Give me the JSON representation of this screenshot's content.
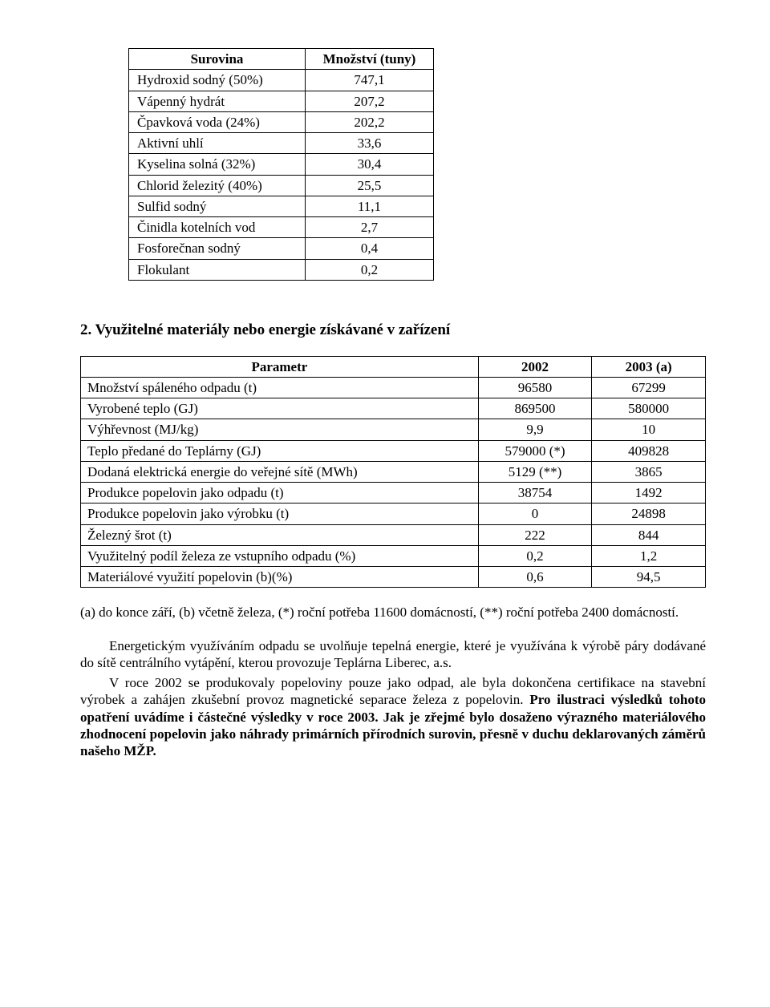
{
  "table1": {
    "headers": [
      "Surovina",
      "Množství (tuny)"
    ],
    "rows": [
      {
        "name": "Hydroxid sodný (50%)",
        "value": "747,1"
      },
      {
        "name": "Vápenný hydrát",
        "value": "207,2"
      },
      {
        "name": "Čpavková voda (24%)",
        "value": "202,2"
      },
      {
        "name": "Aktivní uhlí",
        "value": "33,6"
      },
      {
        "name": "Kyselina solná (32%)",
        "value": "30,4"
      },
      {
        "name": "Chlorid železitý (40%)",
        "value": "25,5"
      },
      {
        "name": "Sulfid sodný",
        "value": "11,1"
      },
      {
        "name": "Činidla kotelních vod",
        "value": "2,7"
      },
      {
        "name": "Fosforečnan sodný",
        "value": "0,4"
      },
      {
        "name": "Flokulant",
        "value": "0,2"
      }
    ]
  },
  "section2_title": "2. Využitelné materiály nebo energie získávané v zařízení",
  "table2": {
    "headers": [
      "Parametr",
      "2002",
      "2003 (a)"
    ],
    "rows": [
      {
        "param": "Množství spáleného odpadu  (t)",
        "v1": "96580",
        "v2": "67299"
      },
      {
        "param": "Vyrobené teplo (GJ)",
        "v1": "869500",
        "v2": "580000"
      },
      {
        "param": "Výhřevnost (MJ/kg)",
        "v1": "9,9",
        "v2": "10"
      },
      {
        "param": "Teplo předané do Teplárny (GJ)",
        "v1": "579000 (*)",
        "v2": "409828"
      },
      {
        "param": "Dodaná elektrická energie do veřejné sítě (MWh)",
        "v1": "5129 (**)",
        "v2": "3865"
      },
      {
        "param": "Produkce popelovin jako odpadu (t)",
        "v1": "38754",
        "v2": "1492"
      },
      {
        "param": "Produkce popelovin jako výrobku (t)",
        "v1": "0",
        "v2": "24898"
      },
      {
        "param": "Železný šrot (t)",
        "v1": "222",
        "v2": "844"
      },
      {
        "param": "Využitelný podíl železa ze vstupního odpadu (%)",
        "v1": "0,2",
        "v2": "1,2"
      },
      {
        "param": "Materiálové využití popelovin (b)(%)",
        "v1": "0,6",
        "v2": "94,5"
      }
    ]
  },
  "footnote": "(a) do konce září, (b) včetně železa, (*) roční potřeba 11600 domácností, (**) roční potřeba 2400 domácností.",
  "para1": "Energetickým využíváním odpadu se uvolňuje tepelná energie, které je využívána k výrobě páry dodávané do sítě centrálního vytápění, kterou provozuje Teplárna Liberec, a.s.",
  "para2": "V roce 2002 se produkovaly popeloviny pouze jako odpad, ale byla dokončena certifikace na stavební výrobek a zahájen zkušební provoz magnetické separace železa z popelovin. ",
  "para2_bold": "Pro ilustraci výsledků tohoto opatření uvádíme i částečné výsledky  v roce 2003. Jak je zřejmé bylo dosaženo výrazného materiálového zhodnocení popelovin jako náhrady primárních přírodních surovin, přesně v duchu deklarovaných záměrů našeho MŽP."
}
